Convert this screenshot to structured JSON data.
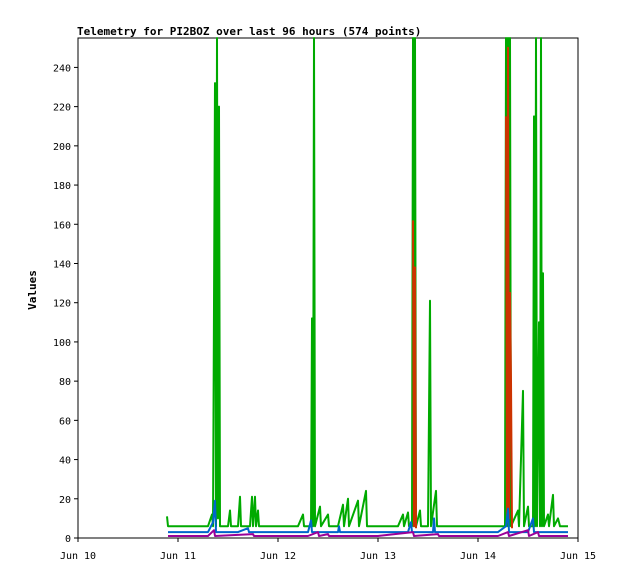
{
  "chart_data": {
    "type": "line",
    "title": "Telemetry for PI2BOZ over last 96 hours (574 points)",
    "ylabel": "Values",
    "xlabel": "",
    "xlim": [
      0,
      5
    ],
    "ylim": [
      0,
      255
    ],
    "x_ticks": [
      {
        "x": 0,
        "label": "Jun 10"
      },
      {
        "x": 1,
        "label": "Jun 11"
      },
      {
        "x": 2,
        "label": "Jun 12"
      },
      {
        "x": 3,
        "label": "Jun 13"
      },
      {
        "x": 4,
        "label": "Jun 14"
      },
      {
        "x": 5,
        "label": "Jun 15"
      }
    ],
    "y_ticks": [
      0,
      20,
      40,
      60,
      80,
      100,
      120,
      140,
      160,
      180,
      200,
      220,
      240
    ],
    "grid": false,
    "legend": "none",
    "series": [
      {
        "color": "#00aa00",
        "points": [
          [
            0.89,
            11
          ],
          [
            0.9,
            6
          ],
          [
            1.0,
            6
          ],
          [
            1.1,
            6
          ],
          [
            1.2,
            6
          ],
          [
            1.3,
            6
          ],
          [
            1.34,
            12
          ],
          [
            1.35,
            6
          ],
          [
            1.37,
            232
          ],
          [
            1.38,
            6
          ],
          [
            1.39,
            255
          ],
          [
            1.4,
            10
          ],
          [
            1.41,
            220
          ],
          [
            1.42,
            6
          ],
          [
            1.5,
            6
          ],
          [
            1.52,
            14
          ],
          [
            1.53,
            6
          ],
          [
            1.6,
            6
          ],
          [
            1.62,
            21
          ],
          [
            1.63,
            6
          ],
          [
            1.72,
            6
          ],
          [
            1.74,
            21
          ],
          [
            1.75,
            6
          ],
          [
            1.77,
            21
          ],
          [
            1.78,
            6
          ],
          [
            1.8,
            14
          ],
          [
            1.81,
            6
          ],
          [
            1.9,
            6
          ],
          [
            2.0,
            6
          ],
          [
            2.1,
            6
          ],
          [
            2.2,
            6
          ],
          [
            2.25,
            12
          ],
          [
            2.26,
            6
          ],
          [
            2.33,
            6
          ],
          [
            2.34,
            112
          ],
          [
            2.35,
            6
          ],
          [
            2.36,
            255
          ],
          [
            2.37,
            6
          ],
          [
            2.42,
            16
          ],
          [
            2.43,
            6
          ],
          [
            2.5,
            12
          ],
          [
            2.51,
            6
          ],
          [
            2.6,
            6
          ],
          [
            2.65,
            17
          ],
          [
            2.66,
            6
          ],
          [
            2.7,
            20
          ],
          [
            2.71,
            6
          ],
          [
            2.8,
            19
          ],
          [
            2.81,
            6
          ],
          [
            2.88,
            24
          ],
          [
            2.89,
            6
          ],
          [
            3.0,
            6
          ],
          [
            3.1,
            6
          ],
          [
            3.2,
            6
          ],
          [
            3.25,
            12
          ],
          [
            3.26,
            6
          ],
          [
            3.3,
            13
          ],
          [
            3.31,
            6
          ],
          [
            3.34,
            6
          ],
          [
            3.35,
            255
          ],
          [
            3.36,
            6
          ],
          [
            3.37,
            255
          ],
          [
            3.38,
            6
          ],
          [
            3.42,
            14
          ],
          [
            3.43,
            6
          ],
          [
            3.5,
            6
          ],
          [
            3.52,
            121
          ],
          [
            3.53,
            6
          ],
          [
            3.58,
            24
          ],
          [
            3.59,
            6
          ],
          [
            3.7,
            6
          ],
          [
            3.8,
            6
          ],
          [
            3.9,
            6
          ],
          [
            4.0,
            6
          ],
          [
            4.1,
            6
          ],
          [
            4.2,
            6
          ],
          [
            4.27,
            6
          ],
          [
            4.28,
            255
          ],
          [
            4.29,
            6
          ],
          [
            4.3,
            255
          ],
          [
            4.31,
            6
          ],
          [
            4.32,
            255
          ],
          [
            4.33,
            6
          ],
          [
            4.4,
            14
          ],
          [
            4.41,
            6
          ],
          [
            4.45,
            75
          ],
          [
            4.46,
            6
          ],
          [
            4.5,
            16
          ],
          [
            4.51,
            6
          ],
          [
            4.55,
            6
          ],
          [
            4.56,
            215
          ],
          [
            4.57,
            6
          ],
          [
            4.58,
            255
          ],
          [
            4.59,
            6
          ],
          [
            4.61,
            110
          ],
          [
            4.62,
            6
          ],
          [
            4.63,
            255
          ],
          [
            4.64,
            6
          ],
          [
            4.65,
            135
          ],
          [
            4.66,
            6
          ],
          [
            4.7,
            12
          ],
          [
            4.71,
            6
          ],
          [
            4.75,
            22
          ],
          [
            4.76,
            6
          ],
          [
            4.8,
            10
          ],
          [
            4.82,
            6
          ],
          [
            4.9,
            6
          ]
        ]
      },
      {
        "color": "#cc3300",
        "points": [
          [
            4.28,
            215
          ],
          [
            4.29,
            8
          ],
          [
            4.3,
            250
          ],
          [
            4.31,
            10
          ],
          [
            4.32,
            125
          ],
          [
            4.33,
            80
          ],
          [
            4.34,
            5
          ]
        ]
      },
      {
        "color": "#cc3300",
        "points": [
          [
            3.35,
            162
          ],
          [
            3.36,
            6
          ],
          [
            3.37,
            138
          ],
          [
            3.38,
            5
          ]
        ]
      },
      {
        "color": "#0066cc",
        "points": [
          [
            0.9,
            3
          ],
          [
            1.3,
            3
          ],
          [
            1.35,
            8
          ],
          [
            1.37,
            19
          ],
          [
            1.38,
            3
          ],
          [
            1.6,
            3
          ],
          [
            1.7,
            5
          ],
          [
            1.71,
            3
          ],
          [
            2.3,
            3
          ],
          [
            2.33,
            9
          ],
          [
            2.34,
            3
          ],
          [
            2.6,
            3
          ],
          [
            2.61,
            6
          ],
          [
            2.62,
            3
          ],
          [
            3.3,
            3
          ],
          [
            3.33,
            8
          ],
          [
            3.34,
            3
          ],
          [
            3.55,
            3
          ],
          [
            3.56,
            10
          ],
          [
            3.57,
            3
          ],
          [
            4.2,
            3
          ],
          [
            4.28,
            6
          ],
          [
            4.3,
            15
          ],
          [
            4.31,
            3
          ],
          [
            4.5,
            3
          ],
          [
            4.55,
            10
          ],
          [
            4.56,
            3
          ],
          [
            4.9,
            3
          ]
        ]
      },
      {
        "color": "#990099",
        "points": [
          [
            0.9,
            1
          ],
          [
            1.3,
            1
          ],
          [
            1.36,
            4
          ],
          [
            1.37,
            1
          ],
          [
            1.75,
            2
          ],
          [
            1.76,
            1
          ],
          [
            2.3,
            1
          ],
          [
            2.4,
            3
          ],
          [
            2.41,
            1
          ],
          [
            2.5,
            2
          ],
          [
            2.51,
            1
          ],
          [
            3.0,
            1
          ],
          [
            3.35,
            3
          ],
          [
            3.36,
            1
          ],
          [
            3.6,
            2
          ],
          [
            3.61,
            1
          ],
          [
            4.2,
            1
          ],
          [
            4.3,
            3
          ],
          [
            4.31,
            1
          ],
          [
            4.5,
            4
          ],
          [
            4.51,
            1
          ],
          [
            4.6,
            3
          ],
          [
            4.61,
            1
          ],
          [
            4.9,
            1
          ]
        ]
      }
    ]
  }
}
